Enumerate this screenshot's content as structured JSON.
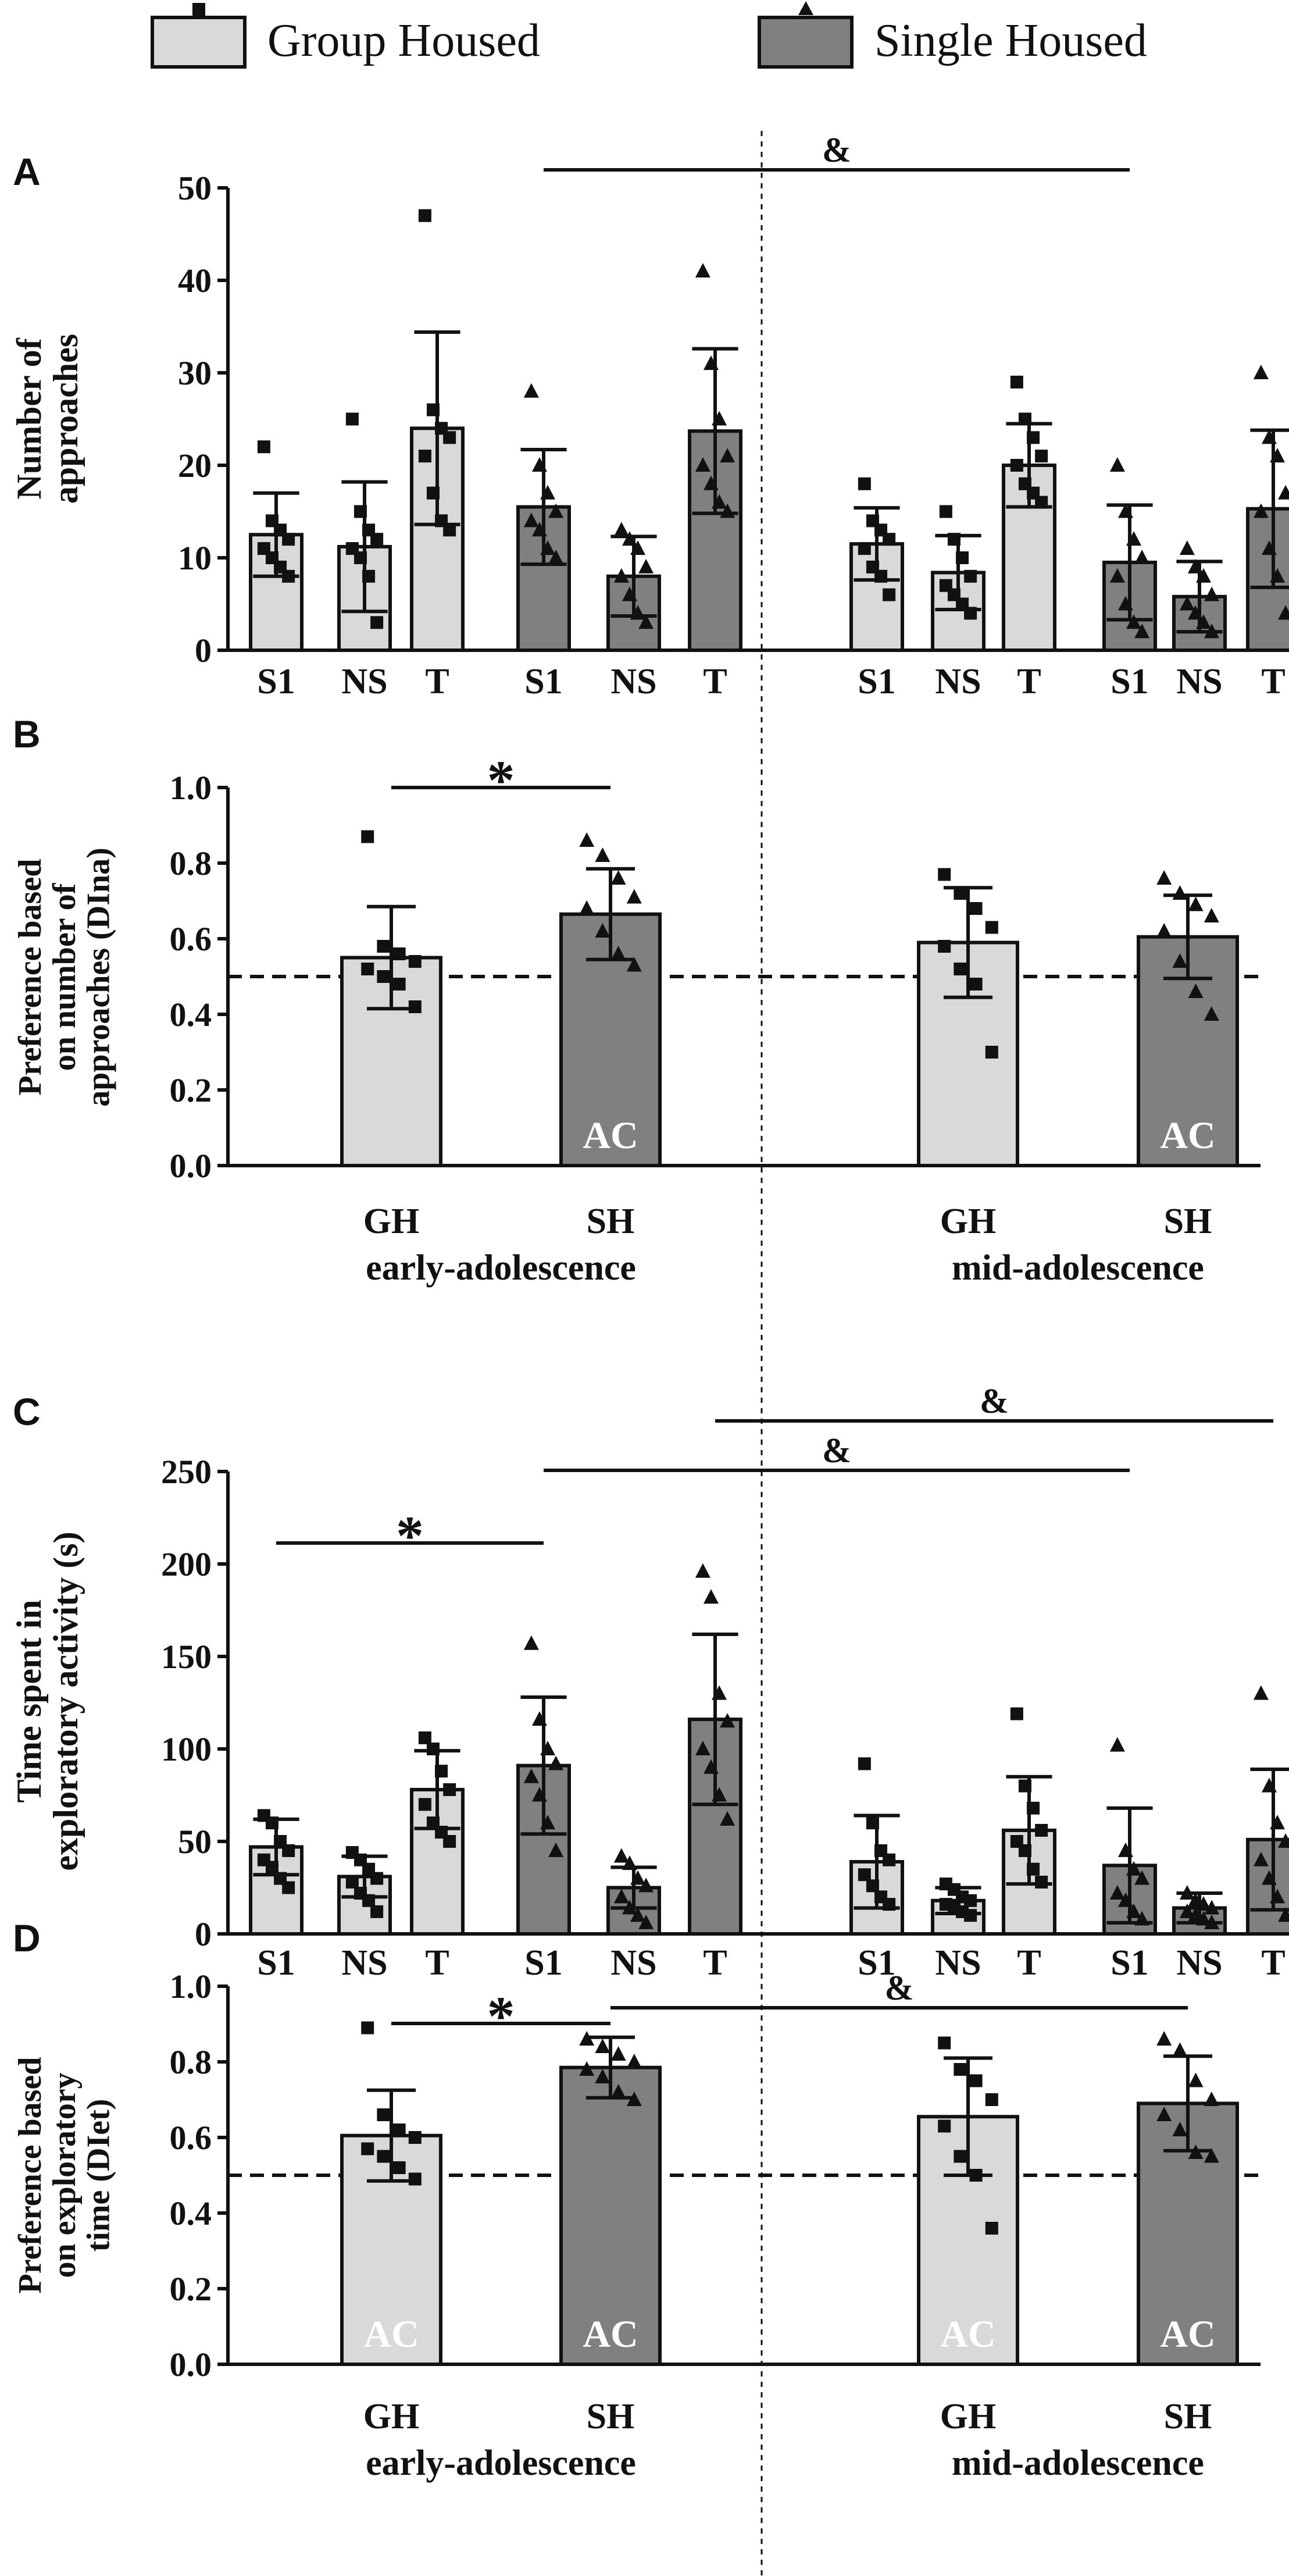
{
  "legend": {
    "items": [
      {
        "label": "Group Housed",
        "color": "#d9d9d9",
        "marker": "square"
      },
      {
        "label": "Single Housed",
        "color": "#808080",
        "marker": "triangle"
      }
    ]
  },
  "colors": {
    "gh": "#d9d9d9",
    "sh": "#808080",
    "ink": "#111111",
    "ac_text": "#ffffff"
  },
  "chart_data": [
    {
      "panel": "A",
      "type": "bar",
      "ylabel": "Number of approaches",
      "ylim": [
        0,
        50
      ],
      "yticks": [
        0,
        10,
        20,
        30,
        40,
        50
      ],
      "xtick_labels": [
        "S1",
        "NS",
        "T",
        "S1",
        "NS",
        "T",
        "S1",
        "NS",
        "T",
        "S1",
        "NS",
        "T"
      ],
      "groups": [
        "GH",
        "GH",
        "GH",
        "SH",
        "SH",
        "SH",
        "GH",
        "GH",
        "GH",
        "SH",
        "SH",
        "SH"
      ],
      "values": [
        12.5,
        11.2,
        24.0,
        15.5,
        8.0,
        23.7,
        11.5,
        8.4,
        20.0,
        9.5,
        5.8,
        15.3
      ],
      "sd": [
        4.5,
        7.0,
        10.4,
        6.2,
        4.3,
        8.9,
        3.9,
        4.0,
        4.5,
        6.2,
        3.8,
        8.5
      ],
      "points": [
        [
          22,
          14,
          13,
          12,
          11,
          10,
          9,
          8
        ],
        [
          25,
          15,
          13,
          12,
          11,
          10,
          8,
          3
        ],
        [
          47,
          26,
          24,
          23,
          21,
          17,
          14,
          13
        ],
        [
          28,
          20,
          17,
          15,
          14,
          13,
          11,
          10
        ],
        [
          13,
          12,
          11,
          9,
          8,
          6,
          4,
          3
        ],
        [
          41,
          31,
          25,
          21,
          20,
          18,
          16,
          15
        ],
        [
          18,
          14,
          13,
          12,
          11,
          9,
          8,
          6
        ],
        [
          15,
          12,
          10,
          8,
          7,
          6,
          5,
          4
        ],
        [
          29,
          25,
          23,
          21,
          20,
          18,
          17,
          16
        ],
        [
          20,
          15,
          12,
          10,
          8,
          5,
          3,
          2
        ],
        [
          11,
          9,
          8,
          6,
          5,
          4,
          3,
          2
        ],
        [
          30,
          23,
          21,
          17,
          15,
          11,
          8,
          4
        ]
      ],
      "significance": [
        {
          "label": "&",
          "from": 3,
          "to": 9
        }
      ]
    },
    {
      "panel": "B",
      "type": "bar",
      "ylabel": "Preference based on number of approaches (DIna)",
      "ylim": [
        0,
        1.0
      ],
      "yticks": [
        0.0,
        0.2,
        0.4,
        0.6,
        0.8,
        1.0
      ],
      "xtick_labels": [
        "GH",
        "SH",
        "GH",
        "SH"
      ],
      "groups": [
        "GH",
        "SH",
        "GH",
        "SH"
      ],
      "values": [
        0.55,
        0.665,
        0.59,
        0.605
      ],
      "sd": [
        0.135,
        0.12,
        0.145,
        0.11
      ],
      "points": [
        [
          0.87,
          0.58,
          0.56,
          0.54,
          0.52,
          0.5,
          0.48,
          0.42
        ],
        [
          0.86,
          0.82,
          0.76,
          0.71,
          0.68,
          0.62,
          0.56,
          0.53
        ],
        [
          0.77,
          0.72,
          0.68,
          0.63,
          0.58,
          0.52,
          0.48,
          0.3
        ],
        [
          0.76,
          0.72,
          0.69,
          0.66,
          0.62,
          0.54,
          0.46,
          0.4
        ]
      ],
      "bar_labels": [
        "",
        "AC",
        "",
        "AC"
      ],
      "chance_level": 0.5,
      "significance": [
        {
          "label": "*",
          "from": 0,
          "to": 1
        }
      ],
      "period_labels": [
        "early-adolescence",
        "mid-adolescence"
      ]
    },
    {
      "panel": "C",
      "type": "bar",
      "ylabel": "Time spent in exploratory activity (s)",
      "ylim": [
        0,
        250
      ],
      "yticks": [
        0,
        50,
        100,
        150,
        200,
        250
      ],
      "xtick_labels": [
        "S1",
        "NS",
        "T",
        "S1",
        "NS",
        "T",
        "S1",
        "NS",
        "T",
        "S1",
        "NS",
        "T"
      ],
      "groups": [
        "GH",
        "GH",
        "GH",
        "SH",
        "SH",
        "SH",
        "GH",
        "GH",
        "GH",
        "SH",
        "SH",
        "SH"
      ],
      "values": [
        47,
        31,
        78,
        91,
        25,
        116,
        39,
        18,
        56,
        37,
        14,
        51
      ],
      "sd": [
        15,
        11,
        21,
        37,
        11,
        46,
        25,
        7,
        29,
        31,
        8,
        38
      ],
      "points": [
        [
          64,
          60,
          50,
          45,
          40,
          36,
          30,
          25
        ],
        [
          44,
          40,
          35,
          30,
          28,
          22,
          18,
          12
        ],
        [
          106,
          100,
          88,
          78,
          70,
          60,
          55,
          50
        ],
        [
          157,
          116,
          100,
          92,
          85,
          75,
          60,
          45
        ],
        [
          42,
          38,
          30,
          26,
          20,
          14,
          10,
          6
        ],
        [
          196,
          182,
          130,
          115,
          100,
          90,
          75,
          62
        ],
        [
          92,
          60,
          45,
          40,
          32,
          26,
          20,
          16
        ],
        [
          27,
          24,
          20,
          18,
          16,
          14,
          12,
          10
        ],
        [
          119,
          80,
          68,
          56,
          50,
          45,
          35,
          28
        ],
        [
          102,
          45,
          35,
          30,
          22,
          18,
          12,
          8
        ],
        [
          22,
          18,
          16,
          14,
          12,
          10,
          8,
          6
        ],
        [
          130,
          80,
          60,
          50,
          40,
          30,
          20,
          10
        ]
      ],
      "significance": [
        {
          "label": "*",
          "from": 0,
          "to": 3
        },
        {
          "label": "&",
          "from": 3,
          "to": 9
        },
        {
          "label": "&",
          "from": 5,
          "to": 11
        }
      ]
    },
    {
      "panel": "D",
      "type": "bar",
      "ylabel": "Preference based on exploratory time (DIet)",
      "ylim": [
        0,
        1.0
      ],
      "yticks": [
        0.0,
        0.2,
        0.4,
        0.6,
        0.8,
        1.0
      ],
      "xtick_labels": [
        "GH",
        "SH",
        "GH",
        "SH"
      ],
      "groups": [
        "GH",
        "SH",
        "GH",
        "SH"
      ],
      "values": [
        0.605,
        0.785,
        0.655,
        0.69
      ],
      "sd": [
        0.12,
        0.08,
        0.155,
        0.125
      ],
      "points": [
        [
          0.89,
          0.66,
          0.62,
          0.6,
          0.57,
          0.55,
          0.52,
          0.49
        ],
        [
          0.86,
          0.84,
          0.82,
          0.8,
          0.78,
          0.76,
          0.72,
          0.7
        ],
        [
          0.85,
          0.78,
          0.75,
          0.7,
          0.63,
          0.55,
          0.5,
          0.36
        ],
        [
          0.86,
          0.83,
          0.75,
          0.7,
          0.66,
          0.62,
          0.56,
          0.55
        ]
      ],
      "bar_labels": [
        "AC",
        "AC",
        "AC",
        "AC"
      ],
      "chance_level": 0.5,
      "significance": [
        {
          "label": "*",
          "from": 0,
          "to": 1
        },
        {
          "label": "&",
          "from": 1,
          "to": 3
        }
      ],
      "period_labels": [
        "early-adolescence",
        "mid-adolescence"
      ]
    }
  ]
}
